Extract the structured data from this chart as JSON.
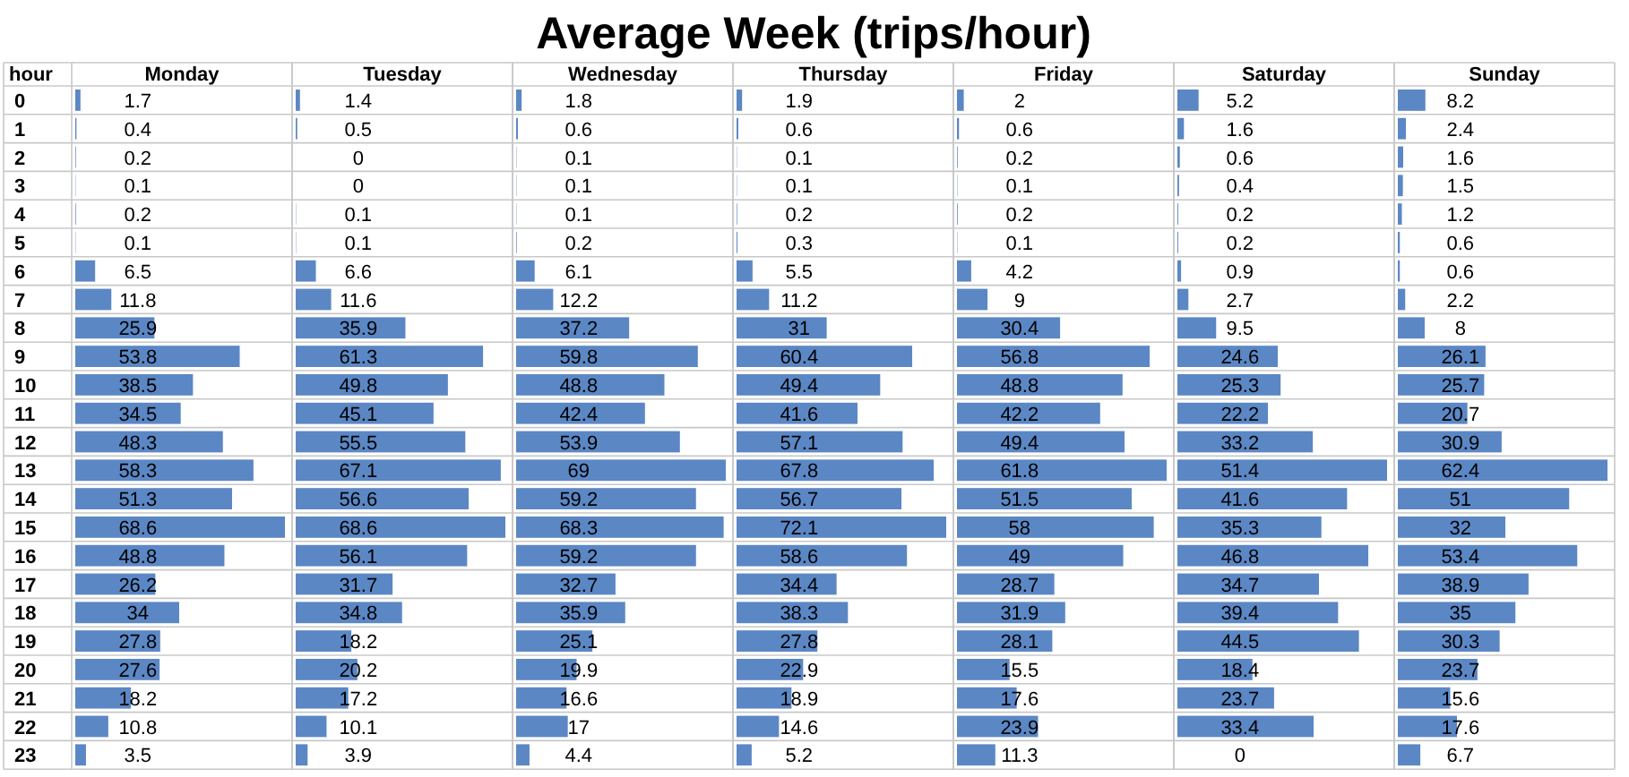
{
  "chart_data": [
    {
      "type": "other",
      "title": "Average Week (trips/hour)"
    },
    {
      "type": "bar",
      "orientation": "horizontal",
      "title": "Monday",
      "ylabel": "hour",
      "tick_labels": "y",
      "grid": true,
      "data_labels": true,
      "color": "#5b87c5",
      "categories": [
        "0",
        "1",
        "2",
        "3",
        "4",
        "5",
        "6",
        "7",
        "8",
        "9",
        "10",
        "11",
        "12",
        "13",
        "14",
        "15",
        "16",
        "17",
        "18",
        "19",
        "20",
        "21",
        "22",
        "23"
      ],
      "values": [
        1.7,
        0.4,
        0.2,
        0.1,
        0.2,
        0.1,
        6.5,
        11.8,
        25.9,
        53.8,
        38.5,
        34.5,
        48.3,
        58.3,
        51.3,
        68.6,
        48.8,
        26.2,
        34,
        27.8,
        27.6,
        18.2,
        10.8,
        3.5
      ]
    },
    {
      "type": "bar",
      "orientation": "horizontal",
      "title": "Tuesday",
      "tick_labels": false,
      "grid": true,
      "data_labels": true,
      "color": "#5b87c5",
      "categories": [
        "0",
        "1",
        "2",
        "3",
        "4",
        "5",
        "6",
        "7",
        "8",
        "9",
        "10",
        "11",
        "12",
        "13",
        "14",
        "15",
        "16",
        "17",
        "18",
        "19",
        "20",
        "21",
        "22",
        "23"
      ],
      "values": [
        1.4,
        0.5,
        0,
        0,
        0.1,
        0.1,
        6.6,
        11.6,
        35.9,
        61.3,
        49.8,
        45.1,
        55.5,
        67.1,
        56.6,
        68.6,
        56.1,
        31.7,
        34.8,
        18.2,
        20.2,
        17.2,
        10.1,
        3.9
      ]
    },
    {
      "type": "bar",
      "orientation": "horizontal",
      "title": "Wednesday",
      "tick_labels": false,
      "grid": true,
      "data_labels": true,
      "color": "#5b87c5",
      "categories": [
        "0",
        "1",
        "2",
        "3",
        "4",
        "5",
        "6",
        "7",
        "8",
        "9",
        "10",
        "11",
        "12",
        "13",
        "14",
        "15",
        "16",
        "17",
        "18",
        "19",
        "20",
        "21",
        "22",
        "23"
      ],
      "values": [
        1.8,
        0.6,
        0.1,
        0.1,
        0.1,
        0.2,
        6.1,
        12.2,
        37.2,
        59.8,
        48.8,
        42.4,
        53.9,
        69,
        59.2,
        68.3,
        59.2,
        32.7,
        35.9,
        25.1,
        19.9,
        16.6,
        17,
        4.4
      ]
    },
    {
      "type": "bar",
      "orientation": "horizontal",
      "title": "Thursday",
      "tick_labels": false,
      "grid": true,
      "data_labels": true,
      "color": "#5b87c5",
      "categories": [
        "0",
        "1",
        "2",
        "3",
        "4",
        "5",
        "6",
        "7",
        "8",
        "9",
        "10",
        "11",
        "12",
        "13",
        "14",
        "15",
        "16",
        "17",
        "18",
        "19",
        "20",
        "21",
        "22",
        "23"
      ],
      "values": [
        1.9,
        0.6,
        0.1,
        0.1,
        0.2,
        0.3,
        5.5,
        11.2,
        31,
        60.4,
        49.4,
        41.6,
        57.1,
        67.8,
        56.7,
        72.1,
        58.6,
        34.4,
        38.3,
        27.8,
        22.9,
        18.9,
        14.6,
        5.2
      ]
    },
    {
      "type": "bar",
      "orientation": "horizontal",
      "title": "Friday",
      "tick_labels": false,
      "grid": true,
      "data_labels": true,
      "color": "#5b87c5",
      "categories": [
        "0",
        "1",
        "2",
        "3",
        "4",
        "5",
        "6",
        "7",
        "8",
        "9",
        "10",
        "11",
        "12",
        "13",
        "14",
        "15",
        "16",
        "17",
        "18",
        "19",
        "20",
        "21",
        "22",
        "23"
      ],
      "values": [
        2,
        0.6,
        0.2,
        0.1,
        0.2,
        0.1,
        4.2,
        9,
        30.4,
        56.8,
        48.8,
        42.2,
        49.4,
        61.8,
        51.5,
        58,
        49,
        28.7,
        31.9,
        28.1,
        15.5,
        17.6,
        23.9,
        11.3
      ]
    },
    {
      "type": "bar",
      "orientation": "horizontal",
      "title": "Saturday",
      "tick_labels": false,
      "grid": true,
      "data_labels": true,
      "color": "#5b87c5",
      "categories": [
        "0",
        "1",
        "2",
        "3",
        "4",
        "5",
        "6",
        "7",
        "8",
        "9",
        "10",
        "11",
        "12",
        "13",
        "14",
        "15",
        "16",
        "17",
        "18",
        "19",
        "20",
        "21",
        "22",
        "23"
      ],
      "values": [
        5.2,
        1.6,
        0.6,
        0.4,
        0.2,
        0.2,
        0.9,
        2.7,
        9.5,
        24.6,
        25.3,
        22.2,
        33.2,
        51.4,
        41.6,
        35.3,
        46.8,
        34.7,
        39.4,
        44.5,
        18.4,
        23.7,
        33.4,
        0
      ]
    },
    {
      "type": "bar",
      "orientation": "horizontal",
      "title": "Sunday",
      "tick_labels": false,
      "grid": true,
      "data_labels": true,
      "color": "#5b87c5",
      "categories": [
        "0",
        "1",
        "2",
        "3",
        "4",
        "5",
        "6",
        "7",
        "8",
        "9",
        "10",
        "11",
        "12",
        "13",
        "14",
        "15",
        "16",
        "17",
        "18",
        "19",
        "20",
        "21",
        "22",
        "23"
      ],
      "values": [
        8.2,
        2.4,
        1.6,
        1.5,
        1.2,
        0.6,
        0.6,
        2.2,
        8,
        26.1,
        25.7,
        20.7,
        30.9,
        62.4,
        51,
        32,
        53.4,
        38.9,
        35,
        30.3,
        23.7,
        15.6,
        17.6,
        6.7
      ]
    }
  ]
}
